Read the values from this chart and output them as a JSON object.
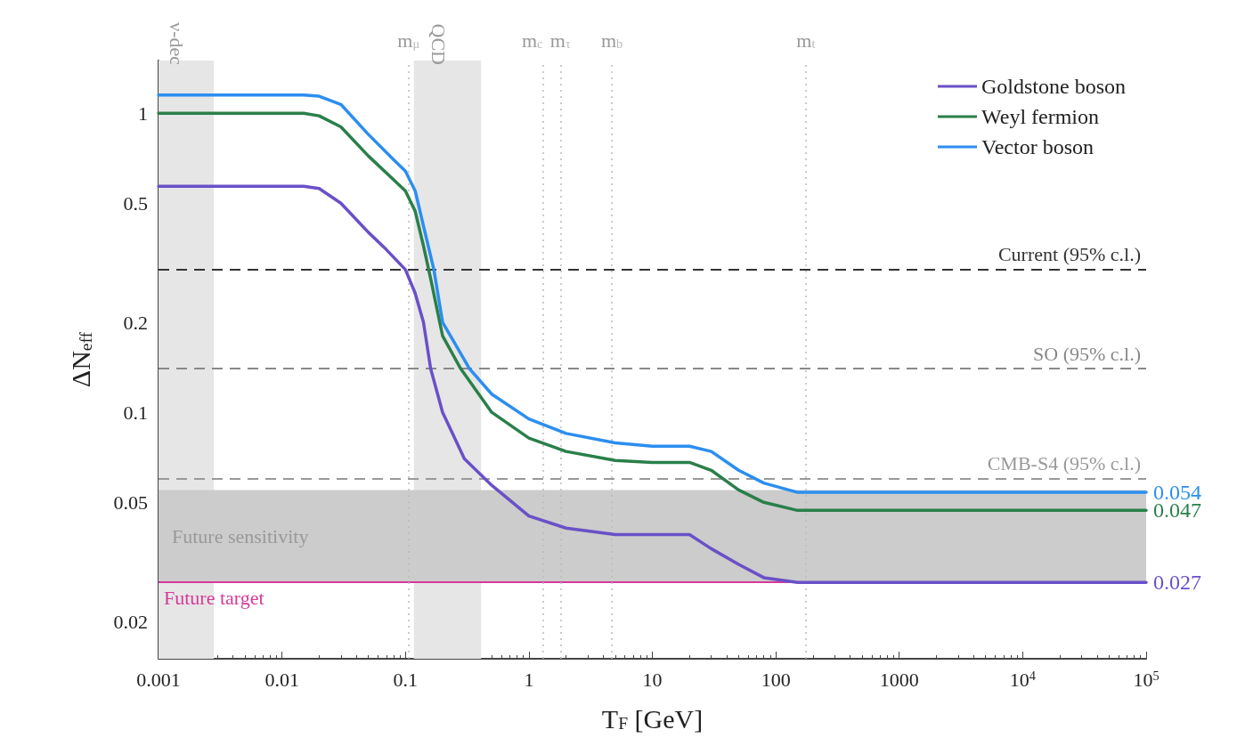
{
  "chart_data": {
    "type": "line",
    "xlabel": "T$_{F}$ [GeV]",
    "ylabel": "ΔN$_{eff}$",
    "log": "xy",
    "xlim": [
      0.001,
      100000
    ],
    "ylim": [
      0.015,
      1.5
    ],
    "xticks": [
      0.001,
      0.01,
      0.1,
      1,
      10,
      100,
      1000,
      {
        "value": 10000,
        "label": "10$^{4}$"
      },
      {
        "value": 100000,
        "label": "10$^{5}$"
      }
    ],
    "yticks": [
      0.02,
      0.05,
      0.1,
      0.2,
      0.5,
      1
    ],
    "grid": false,
    "legend": "top right",
    "marker": "none",
    "line_style": "solid",
    "series": [
      {
        "name": "Goldstone boson",
        "color": "#6a50c8",
        "x": [
          0.001,
          0.015,
          0.02,
          0.03,
          0.05,
          0.07,
          0.1,
          0.12,
          0.14,
          0.16,
          0.2,
          0.3,
          0.5,
          1,
          2,
          5,
          10,
          20,
          30,
          50,
          80,
          150,
          100000
        ],
        "values": [
          0.57,
          0.57,
          0.56,
          0.5,
          0.4,
          0.35,
          0.3,
          0.25,
          0.2,
          0.14,
          0.1,
          0.07,
          0.057,
          0.045,
          0.041,
          0.039,
          0.039,
          0.039,
          0.035,
          0.031,
          0.028,
          0.027,
          0.027
        ],
        "value_labels": [
          null,
          null,
          null,
          null,
          null,
          null,
          null,
          null,
          null,
          null,
          null,
          null,
          null,
          null,
          null,
          null,
          null,
          null,
          null,
          null,
          null,
          null,
          "0.027"
        ]
      },
      {
        "name": "Weyl fermion",
        "color": "#2a7f4a",
        "x": [
          0.001,
          0.015,
          0.02,
          0.03,
          0.05,
          0.08,
          0.1,
          0.12,
          0.14,
          0.16,
          0.2,
          0.28,
          0.5,
          1,
          2,
          5,
          10,
          20,
          30,
          50,
          80,
          150,
          100000
        ],
        "values": [
          1.0,
          1.0,
          0.98,
          0.9,
          0.72,
          0.6,
          0.55,
          0.47,
          0.36,
          0.28,
          0.18,
          0.14,
          0.1,
          0.082,
          0.074,
          0.069,
          0.068,
          0.068,
          0.064,
          0.055,
          0.05,
          0.047,
          0.047
        ],
        "value_labels": [
          null,
          null,
          null,
          null,
          null,
          null,
          null,
          null,
          null,
          null,
          null,
          null,
          null,
          null,
          null,
          null,
          null,
          null,
          null,
          null,
          null,
          null,
          "0.047"
        ]
      },
      {
        "name": "Vector boson",
        "color": "#2b8ef0",
        "x": [
          0.001,
          0.015,
          0.02,
          0.03,
          0.05,
          0.08,
          0.1,
          0.12,
          0.14,
          0.17,
          0.2,
          0.33,
          0.5,
          1,
          2,
          5,
          10,
          20,
          30,
          50,
          80,
          150,
          100000
        ],
        "values": [
          1.15,
          1.15,
          1.14,
          1.07,
          0.85,
          0.7,
          0.64,
          0.55,
          0.42,
          0.3,
          0.2,
          0.14,
          0.115,
          0.095,
          0.085,
          0.079,
          0.077,
          0.077,
          0.074,
          0.064,
          0.058,
          0.054,
          0.054
        ],
        "value_labels": [
          null,
          null,
          null,
          null,
          null,
          null,
          null,
          null,
          null,
          null,
          null,
          null,
          null,
          null,
          null,
          null,
          null,
          null,
          null,
          null,
          null,
          null,
          "0.054"
        ]
      }
    ],
    "ref_lines": [
      {
        "axis": "y",
        "value": 0.3,
        "label": "Current (95% c.l.)",
        "color": "#333333",
        "line_style": "dashed"
      },
      {
        "axis": "y",
        "value": 0.14,
        "label": "SO (95% c.l.)",
        "color": "#888888",
        "line_style": "dashed"
      },
      {
        "axis": "y",
        "value": 0.06,
        "label": "CMB-S4 (95% c.l.)",
        "color": "#999999",
        "line_style": "dashed"
      },
      {
        "axis": "y",
        "value": 0.027,
        "label": "Future target",
        "color": "#d43a9a",
        "line_style": "solid"
      },
      {
        "axis": "x",
        "value": 0.106,
        "label": "m$_{μ}$",
        "color": "#bbbbbb",
        "line_style": "dotted"
      },
      {
        "axis": "x",
        "value": 1.3,
        "label": "m$_{c}$",
        "color": "#bbbbbb",
        "line_style": "dotted"
      },
      {
        "axis": "x",
        "value": 1.8,
        "label": "m$_{τ}$",
        "color": "#bbbbbb",
        "line_style": "dotted"
      },
      {
        "axis": "x",
        "value": 4.7,
        "label": "m$_{b}$",
        "color": "#bbbbbb",
        "line_style": "dotted"
      },
      {
        "axis": "x",
        "value": 175,
        "label": "m$_{t}$",
        "color": "#bbbbbb",
        "line_style": "dotted"
      }
    ],
    "bands": [
      {
        "axis": "x",
        "from": 0.001,
        "to": 0.0028,
        "label": "ν-dec",
        "color": "#e6e6e6"
      },
      {
        "axis": "x",
        "from": 0.117,
        "to": 0.41,
        "label": "QCD",
        "color": "#e6e6e6"
      },
      {
        "axis": "y",
        "from": 0.027,
        "to": 0.055,
        "label": "Future sensitivity",
        "color": "#cccccc"
      }
    ]
  }
}
